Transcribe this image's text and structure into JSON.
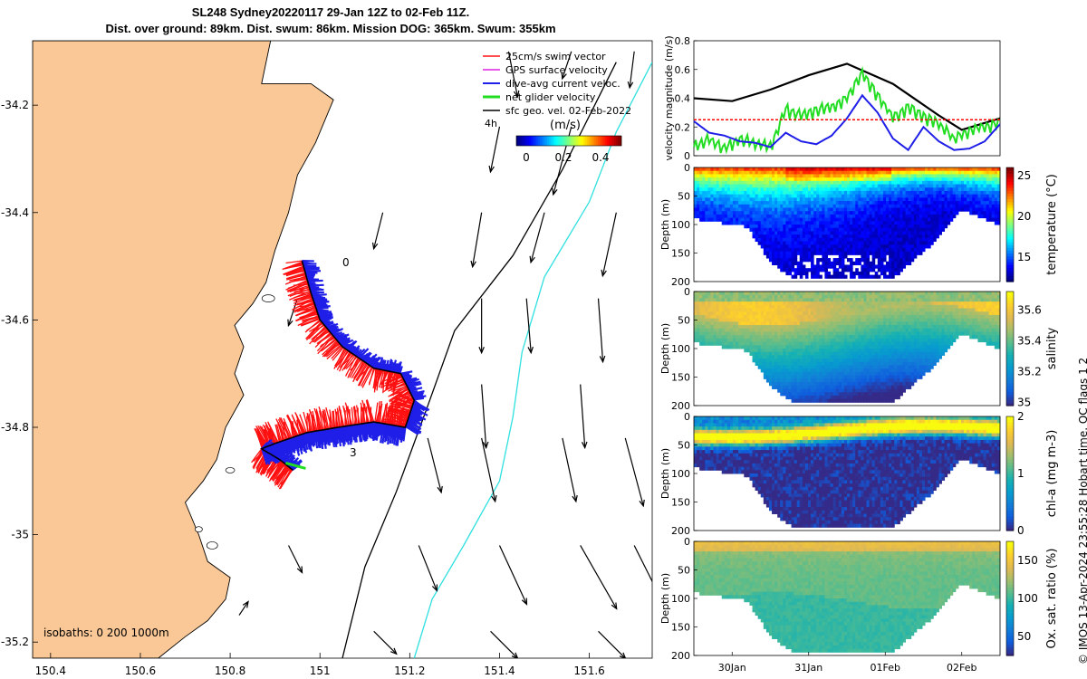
{
  "title": {
    "line1": "SL248 Sydney20220117 29-Jan 12Z to 02-Feb 11Z.",
    "line2": "Dist. over ground: 89km. Dist. swum: 86km. Mission DOG: 365km. Swum: 355km"
  },
  "credit": "© IMOS 13-Apr-2024 23:55:28 Hobart time. QC flags 1  2",
  "colors": {
    "land": "#f9c896",
    "track_blue": "#1f1fe8",
    "swim_red": "#ff1010",
    "net_green": "#22dd22",
    "isobath_cyan": "#30e0e0"
  },
  "chart_data": [
    {
      "type": "map",
      "name": "glider track map",
      "xlim": [
        150.36,
        151.74
      ],
      "ylim": [
        -35.23,
        -34.08
      ],
      "xticks": [
        "150.4",
        "150.6",
        "150.8",
        "151",
        "151.2",
        "151.4",
        "151.6"
      ],
      "yticks": [
        "-34.2",
        "-34.4",
        "-34.6",
        "-34.8",
        "-35",
        "-35.2"
      ],
      "legend": [
        "25cm/s swim vector",
        "GPS surface velocity",
        "dive-avg current veloc.",
        "net glider velocity",
        "sfc geo. vel. 02-Feb-2022"
      ],
      "legend_scale_label": "4h",
      "colorbar": {
        "label": "(m/s)",
        "ticks": [
          "0",
          "0.2",
          "0.4"
        ],
        "range": [
          -0.05,
          0.5
        ]
      },
      "isobaths_label": "isobaths: 0   200  1000m",
      "track_labels": [
        "0",
        "3"
      ],
      "track": [
        [
          150.96,
          -34.49
        ],
        [
          150.98,
          -34.55
        ],
        [
          151.0,
          -34.6
        ],
        [
          151.05,
          -34.65
        ],
        [
          151.12,
          -34.69
        ],
        [
          151.18,
          -34.7
        ],
        [
          151.21,
          -34.75
        ],
        [
          151.19,
          -34.8
        ],
        [
          151.12,
          -34.79
        ],
        [
          151.04,
          -34.8
        ],
        [
          150.97,
          -34.81
        ],
        [
          150.9,
          -34.83
        ],
        [
          150.87,
          -34.84
        ],
        [
          150.91,
          -34.86
        ],
        [
          150.94,
          -34.88
        ]
      ],
      "coast": [
        [
          150.36,
          -34.08
        ],
        [
          150.89,
          -34.08
        ],
        [
          150.87,
          -34.16
        ],
        [
          150.98,
          -34.16
        ],
        [
          151.03,
          -34.19
        ],
        [
          150.99,
          -34.27
        ],
        [
          150.95,
          -34.33
        ],
        [
          150.93,
          -34.4
        ],
        [
          150.9,
          -34.47
        ],
        [
          150.88,
          -34.53
        ],
        [
          150.85,
          -34.57
        ],
        [
          150.81,
          -34.61
        ],
        [
          150.83,
          -34.65
        ],
        [
          150.81,
          -34.7
        ],
        [
          150.83,
          -34.74
        ],
        [
          150.79,
          -34.8
        ],
        [
          150.77,
          -34.86
        ],
        [
          150.74,
          -34.9
        ],
        [
          150.7,
          -34.94
        ],
        [
          150.73,
          -35.0
        ],
        [
          150.75,
          -35.05
        ],
        [
          150.8,
          -35.08
        ],
        [
          150.79,
          -35.12
        ],
        [
          150.75,
          -35.16
        ],
        [
          150.7,
          -35.19
        ],
        [
          150.64,
          -35.23
        ],
        [
          150.36,
          -35.23
        ]
      ],
      "isobath_200m": [
        [
          151.66,
          -34.12
        ],
        [
          151.54,
          -34.32
        ],
        [
          151.43,
          -34.48
        ],
        [
          151.3,
          -34.62
        ],
        [
          151.24,
          -34.76
        ],
        [
          151.17,
          -34.92
        ],
        [
          151.1,
          -35.06
        ],
        [
          151.05,
          -35.23
        ]
      ],
      "isobath_1000m": [
        [
          151.74,
          -34.12
        ],
        [
          151.66,
          -34.25
        ],
        [
          151.6,
          -34.38
        ],
        [
          151.5,
          -34.52
        ],
        [
          151.45,
          -34.66
        ],
        [
          151.43,
          -34.78
        ],
        [
          151.4,
          -34.9
        ],
        [
          151.32,
          -35.02
        ],
        [
          151.25,
          -35.12
        ],
        [
          151.21,
          -35.23
        ]
      ],
      "surface_vectors": [
        [
          151.42,
          -34.1,
          0.02,
          -0.1
        ],
        [
          151.56,
          -34.1,
          -0.02,
          -0.06
        ],
        [
          151.7,
          -34.1,
          -0.01,
          -0.08
        ],
        [
          151.4,
          -34.24,
          -0.02,
          -0.1
        ],
        [
          151.56,
          -34.24,
          -0.04,
          -0.15
        ],
        [
          151.14,
          -34.4,
          -0.02,
          -0.08
        ],
        [
          151.36,
          -34.4,
          -0.02,
          -0.12
        ],
        [
          151.5,
          -34.4,
          -0.03,
          -0.11
        ],
        [
          151.66,
          -34.4,
          -0.03,
          -0.14
        ],
        [
          150.95,
          -34.56,
          -0.02,
          -0.06
        ],
        [
          151.36,
          -34.56,
          0.0,
          -0.12
        ],
        [
          151.46,
          -34.56,
          0.01,
          -0.12
        ],
        [
          151.62,
          -34.56,
          0.01,
          -0.14
        ],
        [
          151.36,
          -34.72,
          0.01,
          -0.14
        ],
        [
          151.58,
          -34.72,
          0.01,
          -0.14
        ],
        [
          151.24,
          -34.82,
          0.03,
          -0.12
        ],
        [
          151.36,
          -34.82,
          0.03,
          -0.14
        ],
        [
          151.54,
          -34.82,
          0.03,
          -0.14
        ],
        [
          151.68,
          -34.82,
          0.04,
          -0.15
        ],
        [
          150.93,
          -35.02,
          0.03,
          -0.06
        ],
        [
          151.22,
          -35.02,
          0.04,
          -0.1
        ],
        [
          151.4,
          -35.02,
          0.06,
          -0.13
        ],
        [
          151.58,
          -35.02,
          0.08,
          -0.14
        ],
        [
          151.7,
          -35.02,
          0.08,
          -0.16
        ],
        [
          150.82,
          -35.15,
          0.02,
          0.03
        ],
        [
          151.12,
          -35.18,
          0.05,
          -0.05
        ],
        [
          151.38,
          -35.18,
          0.06,
          -0.06
        ],
        [
          151.62,
          -35.18,
          0.06,
          -0.06
        ]
      ]
    },
    {
      "type": "line",
      "name": "velocity magnitude",
      "ylabel": "velocity magnitude (m/s)",
      "yticks": [
        "0",
        "0.2",
        "0.4",
        "0.6",
        "0.8"
      ],
      "ylim": [
        0,
        0.8
      ],
      "xlim_days": [
        0,
        4
      ],
      "series": [
        {
          "name": "sfc geo. vel.",
          "color": "#000000",
          "x": [
            0,
            0.5,
            1,
            1.5,
            2,
            2.6,
            3.2,
            3.5,
            4
          ],
          "y": [
            0.4,
            0.38,
            0.46,
            0.56,
            0.64,
            0.5,
            0.28,
            0.18,
            0.26
          ]
        },
        {
          "name": "net glider velocity",
          "color": "#22dd22",
          "x": [
            0,
            0.2,
            0.4,
            0.6,
            0.8,
            1.0,
            1.2,
            1.4,
            1.6,
            1.8,
            2.0,
            2.2,
            2.4,
            2.6,
            2.8,
            3.0,
            3.2,
            3.4,
            3.6,
            3.8,
            4.0
          ],
          "y": [
            0.06,
            0.12,
            0.05,
            0.12,
            0.08,
            0.06,
            0.32,
            0.28,
            0.32,
            0.34,
            0.4,
            0.58,
            0.42,
            0.26,
            0.34,
            0.28,
            0.22,
            0.12,
            0.18,
            0.2,
            0.24
          ]
        },
        {
          "name": "dive-avg current veloc.",
          "color": "#1f1fe8",
          "x": [
            0,
            0.2,
            0.4,
            0.6,
            0.8,
            1.0,
            1.2,
            1.4,
            1.6,
            1.8,
            2.0,
            2.2,
            2.4,
            2.6,
            2.8,
            3.0,
            3.2,
            3.4,
            3.6,
            3.8,
            4.0
          ],
          "y": [
            0.24,
            0.16,
            0.14,
            0.1,
            0.09,
            0.06,
            0.16,
            0.1,
            0.08,
            0.14,
            0.26,
            0.42,
            0.3,
            0.12,
            0.04,
            0.2,
            0.1,
            0.04,
            0.05,
            0.1,
            0.22
          ]
        },
        {
          "name": "25cm/s swim vector",
          "color": "#ff0000",
          "x": [
            0,
            4
          ],
          "y": [
            0.25,
            0.25
          ]
        }
      ]
    },
    {
      "type": "heatmap",
      "name": "temperature section",
      "ylabel": "Depth (m)",
      "yticks": [
        "0",
        "50",
        "100",
        "150",
        "200"
      ],
      "ylim": [
        0,
        200
      ],
      "colorbar_label": "temperature (°C)",
      "colorbar_ticks": [
        "15",
        "20",
        "25"
      ],
      "crange": [
        12,
        26
      ]
    },
    {
      "type": "heatmap",
      "name": "salinity section",
      "ylabel": "Depth (m)",
      "yticks": [
        "0",
        "50",
        "100",
        "150",
        "200"
      ],
      "ylim": [
        0,
        200
      ],
      "colorbar_label": "salinity",
      "colorbar_ticks": [
        "35",
        "35.2",
        "35.4",
        "35.6"
      ],
      "crange": [
        34.98,
        35.72
      ]
    },
    {
      "type": "heatmap",
      "name": "chlorophyll-a section",
      "ylabel": "Depth (m)",
      "yticks": [
        "0",
        "50",
        "100",
        "150",
        "200"
      ],
      "ylim": [
        0,
        200
      ],
      "colorbar_label": "chl-a (mg m-3)",
      "colorbar_ticks": [
        "0",
        "1",
        "2"
      ],
      "crange": [
        0,
        2
      ]
    },
    {
      "type": "heatmap",
      "name": "oxygen saturation section",
      "ylabel": "Depth (m)",
      "yticks": [
        "0",
        "50",
        "100",
        "150",
        "200"
      ],
      "ylim": [
        0,
        200
      ],
      "colorbar_label": "Ox. sat. ratio (%)",
      "colorbar_ticks": [
        "50",
        "100",
        "150"
      ],
      "crange": [
        25,
        175
      ],
      "xticks": [
        "30Jan",
        "31Jan",
        "01Feb",
        "02Feb"
      ],
      "xtick_days": [
        0.5,
        1.5,
        2.5,
        3.5
      ]
    }
  ]
}
